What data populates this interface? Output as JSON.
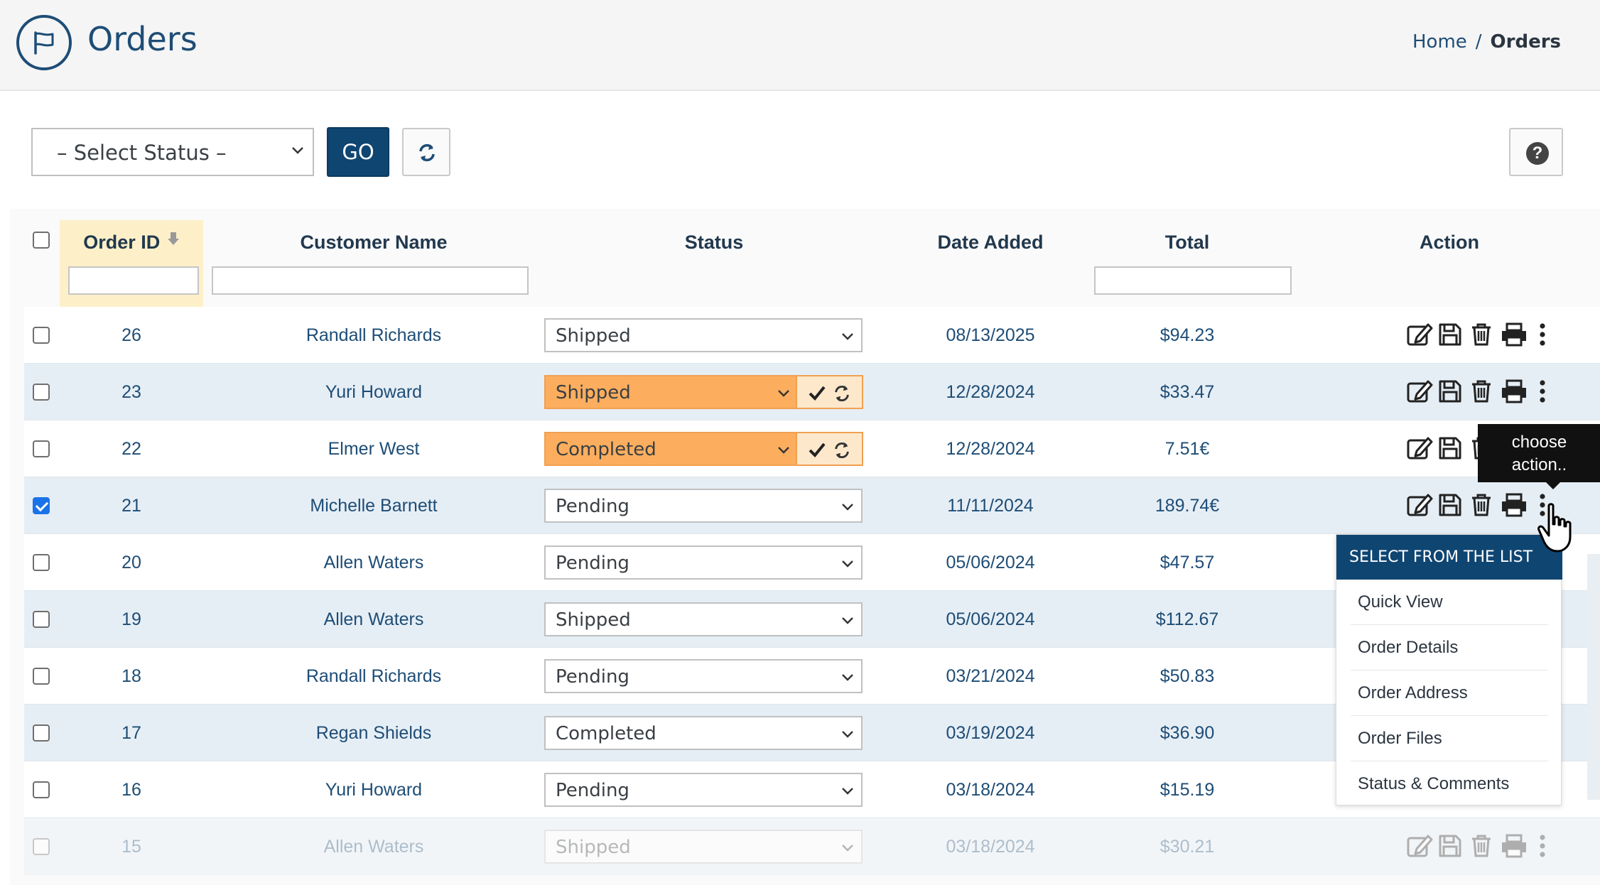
{
  "header": {
    "title": "Orders",
    "logo_icon": "flag-icon",
    "breadcrumb": {
      "home": "Home",
      "separator": "/",
      "current": "Orders"
    }
  },
  "toolbar": {
    "status_select_value": "– Select Status –",
    "go_label": "GO",
    "refresh_icon": "refresh-icon",
    "help_icon": "question-circle-icon"
  },
  "table": {
    "columns": {
      "order_id": "Order ID",
      "customer": "Customer Name",
      "status": "Status",
      "date": "Date Added",
      "total": "Total",
      "action": "Action"
    },
    "sorted_column": "Order ID",
    "rows": [
      {
        "id": "26",
        "customer": "Randall Richards",
        "status": "Shipped",
        "date": "08/13/2025",
        "total": "$94.23",
        "checked": false,
        "changed": false
      },
      {
        "id": "23",
        "customer": "Yuri Howard",
        "status": "Shipped",
        "date": "12/28/2024",
        "total": "$33.47",
        "checked": false,
        "changed": true
      },
      {
        "id": "22",
        "customer": "Elmer West",
        "status": "Completed",
        "date": "12/28/2024",
        "total": "7.51€",
        "checked": false,
        "changed": true
      },
      {
        "id": "21",
        "customer": "Michelle Barnett",
        "status": "Pending",
        "date": "11/11/2024",
        "total": "189.74€",
        "checked": true,
        "changed": false
      },
      {
        "id": "20",
        "customer": "Allen Waters",
        "status": "Pending",
        "date": "05/06/2024",
        "total": "$47.57",
        "checked": false,
        "changed": false
      },
      {
        "id": "19",
        "customer": "Allen Waters",
        "status": "Shipped",
        "date": "05/06/2024",
        "total": "$112.67",
        "checked": false,
        "changed": false
      },
      {
        "id": "18",
        "customer": "Randall Richards",
        "status": "Pending",
        "date": "03/21/2024",
        "total": "$50.83",
        "checked": false,
        "changed": false
      },
      {
        "id": "17",
        "customer": "Regan Shields",
        "status": "Completed",
        "date": "03/19/2024",
        "total": "$36.90",
        "checked": false,
        "changed": false
      },
      {
        "id": "16",
        "customer": "Yuri Howard",
        "status": "Pending",
        "date": "03/18/2024",
        "total": "$15.19",
        "checked": false,
        "changed": false
      },
      {
        "id": "15",
        "customer": "Allen Waters",
        "status": "Shipped",
        "date": "03/18/2024",
        "total": "$30.21",
        "checked": false,
        "changed": false
      }
    ],
    "row_action_icons": [
      "edit-icon",
      "save-icon",
      "trash-icon",
      "print-icon",
      "more-vertical-icon"
    ]
  },
  "tooltip": {
    "line1": "choose",
    "line2": "action.."
  },
  "action_menu": {
    "header": "SELECT FROM THE LIST",
    "items": [
      "Quick View",
      "Order Details",
      "Order Address",
      "Order Files",
      "Status & Comments"
    ]
  },
  "colors": {
    "brand": "#0f4571",
    "text_link": "#1e4d76",
    "changed_status": "#fcae5e",
    "sorted_header": "#fdf0c8",
    "row_alt": "#e6eef5",
    "checkbox_checked": "#1a73e8"
  }
}
